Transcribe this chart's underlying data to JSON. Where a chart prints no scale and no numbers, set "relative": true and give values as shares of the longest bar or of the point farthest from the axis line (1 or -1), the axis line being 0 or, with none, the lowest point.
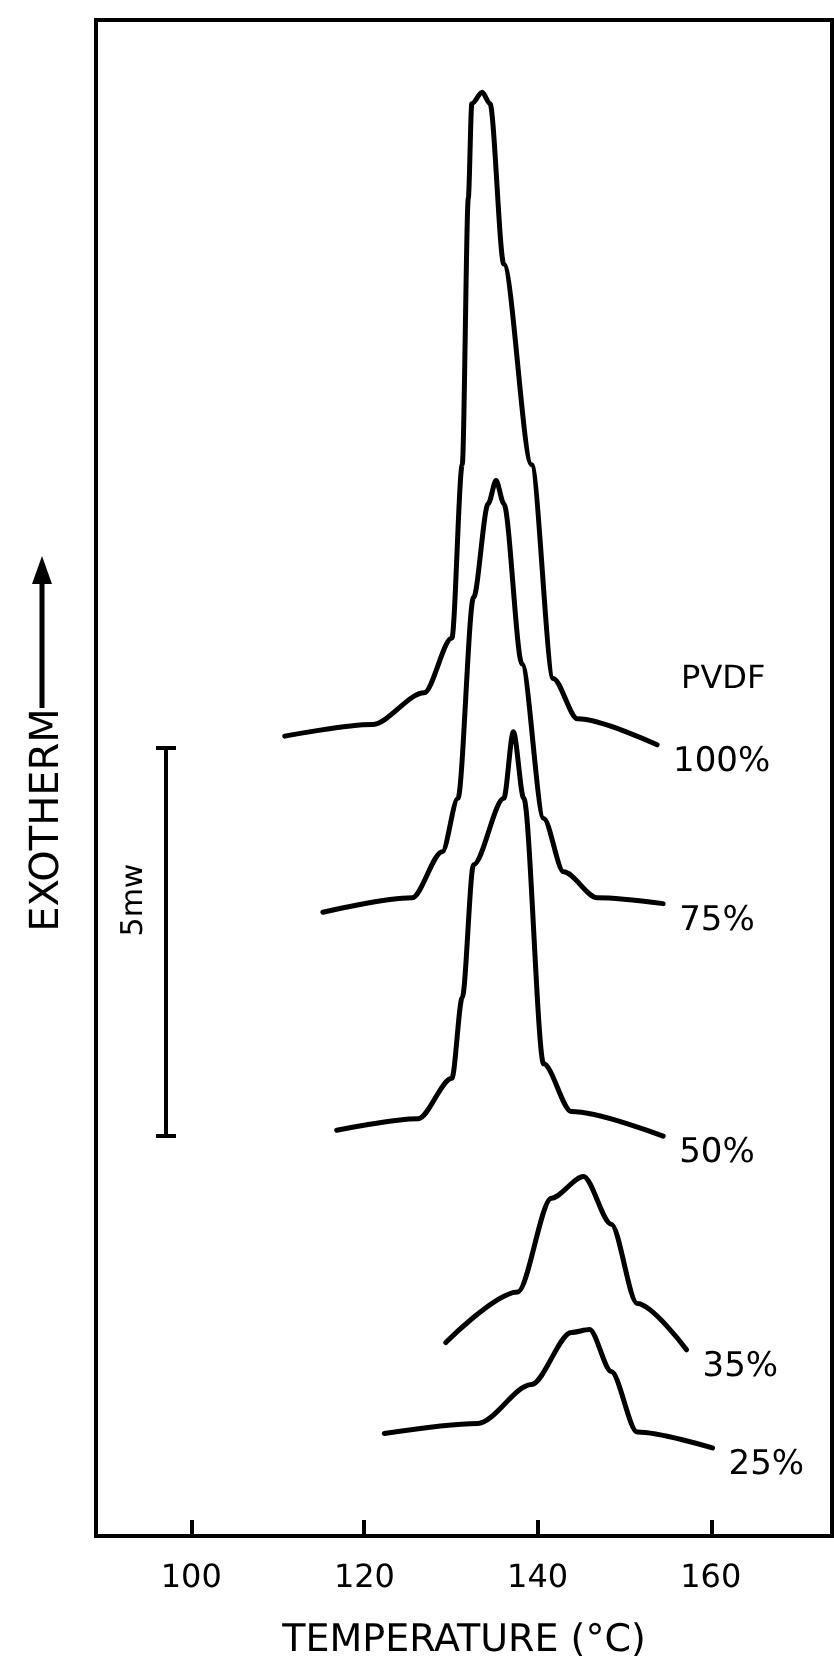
{
  "chart_data": {
    "type": "line",
    "relative": true,
    "xlabel": "TEMPERATURE (°C)",
    "ylabel": "EXOTHERM",
    "legend_title": "PVDF",
    "annotations": [
      "5mw"
    ],
    "xlim": [
      89,
      174
    ],
    "xticks": [
      100,
      120,
      140,
      160
    ],
    "grid": false,
    "legend": false,
    "marker": "none",
    "line_style": "solid",
    "series": [
      {
        "name": "100%",
        "color": "#000000",
        "x": [
          110.8,
          120.9,
          126.9,
          130.1,
          131.3,
          132.0,
          132.4,
          133.6,
          134.5,
          136.1,
          139.3,
          141.8,
          144.6,
          153.8
        ],
        "values": [
          0.554,
          0.562,
          0.584,
          0.622,
          0.742,
          0.927,
          0.992,
          1.0,
          0.992,
          0.881,
          0.742,
          0.594,
          0.566,
          0.548
        ]
      },
      {
        "name": "75%",
        "color": "#000000",
        "x": [
          115.2,
          125.5,
          129.0,
          130.8,
          132.6,
          134.3,
          135.2,
          136.1,
          138.2,
          140.7,
          143.0,
          146.9,
          154.5
        ],
        "values": [
          0.432,
          0.442,
          0.474,
          0.511,
          0.65,
          0.715,
          0.731,
          0.715,
          0.604,
          0.497,
          0.46,
          0.442,
          0.438
        ]
      },
      {
        "name": "50%",
        "color": "#000000",
        "x": [
          116.8,
          126.2,
          130.1,
          131.3,
          132.6,
          136.1,
          137.2,
          138.4,
          140.7,
          143.9,
          154.5
        ],
        "values": [
          0.281,
          0.289,
          0.317,
          0.373,
          0.465,
          0.511,
          0.557,
          0.511,
          0.327,
          0.294,
          0.277
        ]
      },
      {
        "name": "35%",
        "color": "#000000",
        "x": [
          129.4,
          137.7,
          141.6,
          145.3,
          148.5,
          151.5,
          157.2
        ],
        "values": [
          0.134,
          0.169,
          0.234,
          0.249,
          0.216,
          0.161,
          0.129
        ]
      },
      {
        "name": "25%",
        "color": "#000000",
        "x": [
          122.3,
          133.1,
          139.3,
          143.9,
          146.0,
          148.5,
          151.5,
          160.2
        ],
        "values": [
          0.071,
          0.078,
          0.105,
          0.141,
          0.143,
          0.114,
          0.072,
          0.061
        ]
      }
    ]
  }
}
